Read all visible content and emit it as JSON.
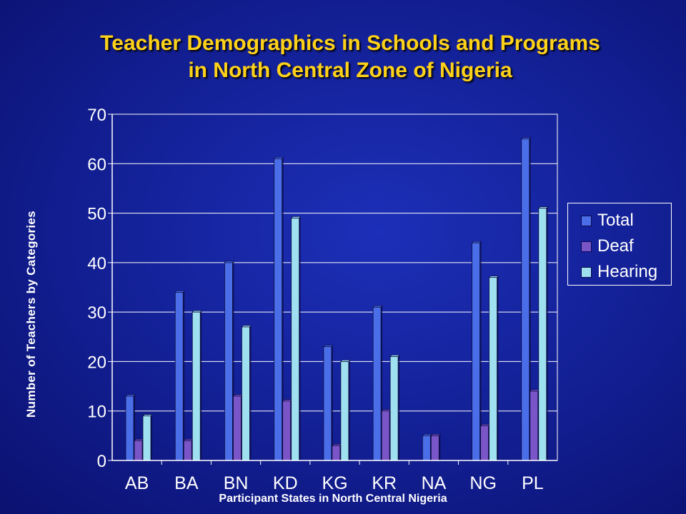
{
  "title_line1": "Teacher Demographics in Schools and Programs",
  "title_line2": "in North Central Zone of Nigeria",
  "chart_data": {
    "type": "bar",
    "title": "Teacher Demographics in Schools and Programs in North Central Zone of Nigeria",
    "xlabel": "Participant States in North Central Nigeria",
    "ylabel": "Number of Teachers by Categories",
    "categories": [
      "AB",
      "BA",
      "BN",
      "KD",
      "KG",
      "KR",
      "NA",
      "NG",
      "PL"
    ],
    "series": [
      {
        "name": "Total",
        "color": "#4a6ee8",
        "values": [
          13,
          34,
          40,
          61,
          23,
          31,
          5,
          44,
          65
        ]
      },
      {
        "name": "Deaf",
        "color": "#7a55c8",
        "values": [
          4,
          4,
          13,
          12,
          3,
          10,
          5,
          7,
          14
        ]
      },
      {
        "name": "Hearing",
        "color": "#9fe0f0",
        "values": [
          9,
          30,
          27,
          49,
          20,
          21,
          null,
          37,
          51
        ]
      }
    ],
    "ylim": [
      0,
      70
    ],
    "yticks": [
      0,
      10,
      20,
      30,
      40,
      50,
      60,
      70
    ],
    "grid": true,
    "legend": "right"
  }
}
